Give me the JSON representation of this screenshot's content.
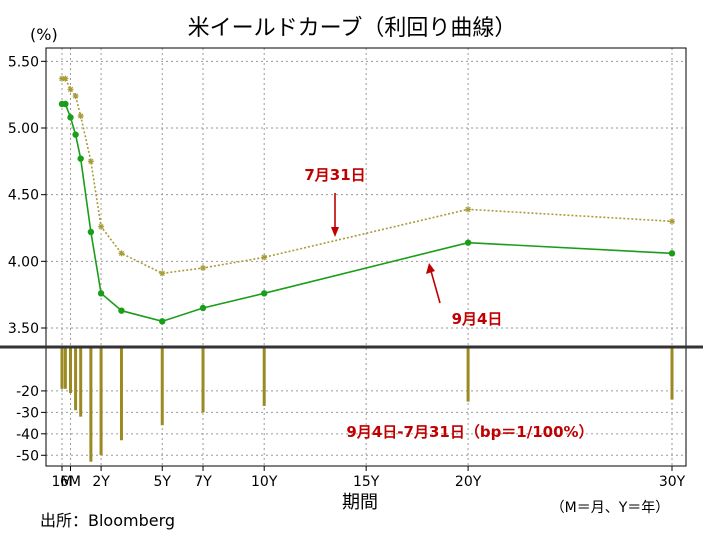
{
  "chart_data": {
    "title": "米イールドカーブ（利回り曲線）",
    "ylabel": "(%)",
    "xlabel": "期間",
    "x_note": "（M＝月、Y＝年）",
    "source": "出所：Bloomberg",
    "colors": {
      "jul31": "#a89b3a",
      "sep4": "#1a9e1a",
      "diff": "#9b8a22",
      "annotation": "#c00000"
    },
    "upper": {
      "type": "line",
      "ylim": [
        3.35,
        5.6
      ],
      "yticks": [
        3.5,
        4.0,
        4.5,
        5.0,
        5.5
      ],
      "ytick_labels": [
        "3.50",
        "4.00",
        "4.50",
        "5.00",
        "5.50"
      ],
      "series": [
        {
          "name": "7月31日",
          "style": "dotted-star",
          "x": [
            0.0833,
            0.25,
            0.5,
            0.75,
            1,
            1.5,
            2,
            3,
            5,
            7,
            10,
            20,
            30
          ],
          "values": [
            5.37,
            5.37,
            5.29,
            5.24,
            5.09,
            4.75,
            4.26,
            4.06,
            3.91,
            3.95,
            4.03,
            4.39,
            4.3
          ]
        },
        {
          "name": "9月4日",
          "style": "solid-dot",
          "x": [
            0.0833,
            0.25,
            0.5,
            0.75,
            1,
            1.5,
            2,
            3,
            5,
            7,
            10,
            20,
            30
          ],
          "values": [
            5.18,
            5.18,
            5.08,
            4.95,
            4.77,
            4.22,
            3.76,
            3.63,
            3.55,
            3.65,
            3.76,
            4.14,
            4.06
          ]
        }
      ],
      "annotations": [
        {
          "text": "7月31日",
          "series": "7月31日"
        },
        {
          "text": "9月4日",
          "series": "9月4日"
        }
      ]
    },
    "lower": {
      "type": "bar",
      "title": "9月4日-7月31日（bp＝1/100%）",
      "ylim": [
        -55,
        0
      ],
      "yticks": [
        -20,
        -30,
        -40,
        -50
      ],
      "ytick_labels": [
        "-20",
        "-30",
        "-40",
        "-50"
      ],
      "x": [
        0.0833,
        0.25,
        0.5,
        0.75,
        1,
        1.5,
        2,
        3,
        5,
        7,
        10,
        20,
        30
      ],
      "values": [
        -19,
        -19,
        -21,
        -29,
        -32,
        -53,
        -50,
        -43,
        -36,
        -30,
        -27,
        -25,
        -24
      ]
    },
    "xticks": [
      {
        "x": 0.0833,
        "label": "1M"
      },
      {
        "x": 0.5,
        "label": "6M"
      },
      {
        "x": 2,
        "label": "2Y"
      },
      {
        "x": 5,
        "label": "5Y"
      },
      {
        "x": 7,
        "label": "7Y"
      },
      {
        "x": 10,
        "label": "10Y"
      },
      {
        "x": 15,
        "label": "15Y"
      },
      {
        "x": 20,
        "label": "20Y"
      },
      {
        "x": 30,
        "label": "30Y"
      }
    ]
  }
}
